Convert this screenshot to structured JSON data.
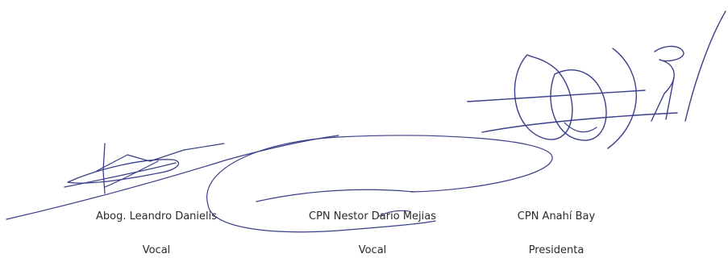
{
  "signatories": [
    {
      "name": "Abog. Leandro Danielis",
      "role": "Vocal"
    },
    {
      "name": "CPN Nestor Dario Mejias",
      "role": "Vocal"
    },
    {
      "name": "CPN Anahí Bay",
      "role": "Presidenta"
    }
  ],
  "ink_color": "#3a3f8a"
}
